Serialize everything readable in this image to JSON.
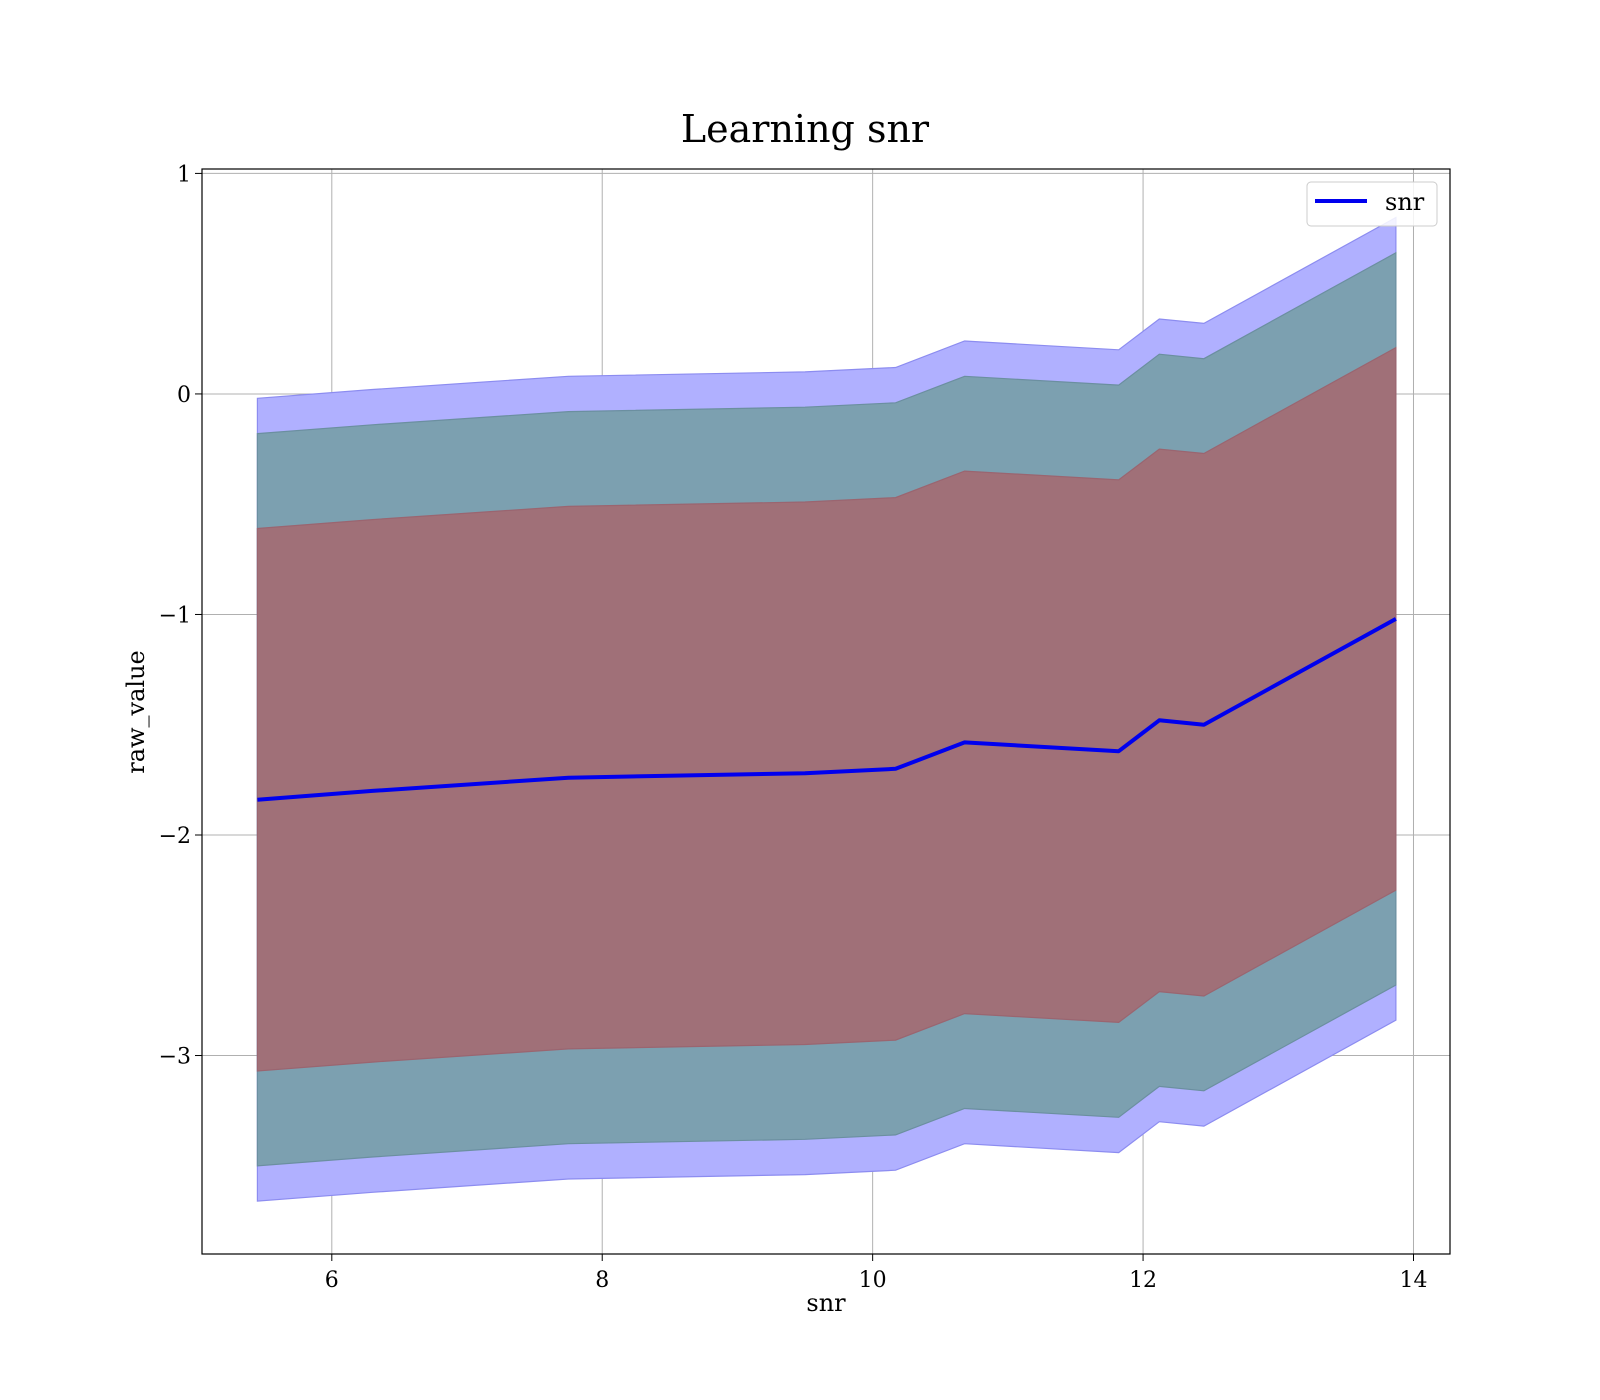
{
  "chart_data": {
    "type": "line",
    "title": "Learning snr",
    "xlabel": "snr",
    "ylabel": "raw_value",
    "xlim": [
      5.04,
      14.27
    ],
    "ylim": [
      -3.9,
      1.02
    ],
    "xticks": [
      6,
      8,
      10,
      12,
      14
    ],
    "yticks": [
      1,
      0,
      -1,
      -2,
      -3
    ],
    "xtick_labels": [
      "6",
      "8",
      "10",
      "12",
      "14"
    ],
    "ytick_labels": [
      "1",
      "0",
      "−1",
      "−2",
      "−3"
    ],
    "grid": true,
    "legend": {
      "position": "top-right",
      "entries": [
        "snr"
      ]
    },
    "x": [
      5.45,
      6.3,
      7.75,
      9.5,
      10.17,
      10.68,
      11.82,
      12.12,
      12.45,
      13.87
    ],
    "series": [
      {
        "name": "snr",
        "color": "#0000ee",
        "values": [
          -1.84,
          -1.8,
          -1.74,
          -1.72,
          -1.7,
          -1.58,
          -1.62,
          -1.48,
          -1.5,
          -1.02
        ]
      }
    ],
    "bands": [
      {
        "color": "#b0b0ff",
        "stroke": "#8c8cf0",
        "upper": [
          -0.02,
          0.02,
          0.08,
          0.1,
          0.12,
          0.24,
          0.2,
          0.34,
          0.32,
          0.8
        ],
        "lower": [
          -3.66,
          -3.62,
          -3.56,
          -3.54,
          -3.52,
          -3.4,
          -3.44,
          -3.3,
          -3.32,
          -2.84
        ]
      },
      {
        "color": "#7ca0b0",
        "stroke": "#6b8fa0",
        "upper": [
          -0.18,
          -0.14,
          -0.08,
          -0.06,
          -0.04,
          0.08,
          0.04,
          0.18,
          0.16,
          0.64
        ],
        "lower": [
          -3.5,
          -3.46,
          -3.4,
          -3.38,
          -3.36,
          -3.24,
          -3.28,
          -3.14,
          -3.16,
          -2.68
        ]
      },
      {
        "color": "#a07078",
        "stroke": "#9a6570",
        "upper": [
          -0.61,
          -0.57,
          -0.51,
          -0.49,
          -0.47,
          -0.35,
          -0.39,
          -0.25,
          -0.27,
          0.21
        ],
        "lower": [
          -3.07,
          -3.03,
          -2.97,
          -2.95,
          -2.93,
          -2.81,
          -2.85,
          -2.71,
          -2.73,
          -2.25
        ]
      }
    ]
  }
}
